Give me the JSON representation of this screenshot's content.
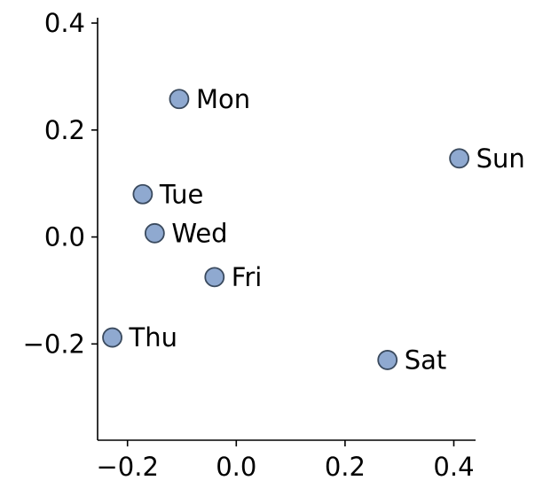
{
  "chart_data": {
    "type": "scatter",
    "title": "",
    "xlabel": "",
    "ylabel": "",
    "xlim": [
      -0.255,
      0.44
    ],
    "ylim": [
      -0.38,
      0.41
    ],
    "xticks": [
      -0.2,
      0.0,
      0.2,
      0.4
    ],
    "yticks": [
      -0.2,
      0.0,
      0.2,
      0.4
    ],
    "xtick_labels": [
      "−0.2",
      "0.0",
      "0.2",
      "0.4"
    ],
    "ytick_labels": [
      "−0.2",
      "0.0",
      "0.2",
      "0.4"
    ],
    "grid": false,
    "marker_color": "#8fa9d0",
    "marker_edge_color": "#3a4a5e",
    "points": [
      {
        "label": "Mon",
        "x": -0.105,
        "y": 0.258
      },
      {
        "label": "Sun",
        "x": 0.41,
        "y": 0.147
      },
      {
        "label": "Tue",
        "x": -0.172,
        "y": 0.08
      },
      {
        "label": "Wed",
        "x": -0.15,
        "y": 0.007
      },
      {
        "label": "Fri",
        "x": -0.04,
        "y": -0.075
      },
      {
        "label": "Thu",
        "x": -0.228,
        "y": -0.188
      },
      {
        "label": "Sat",
        "x": 0.278,
        "y": -0.23
      }
    ]
  }
}
